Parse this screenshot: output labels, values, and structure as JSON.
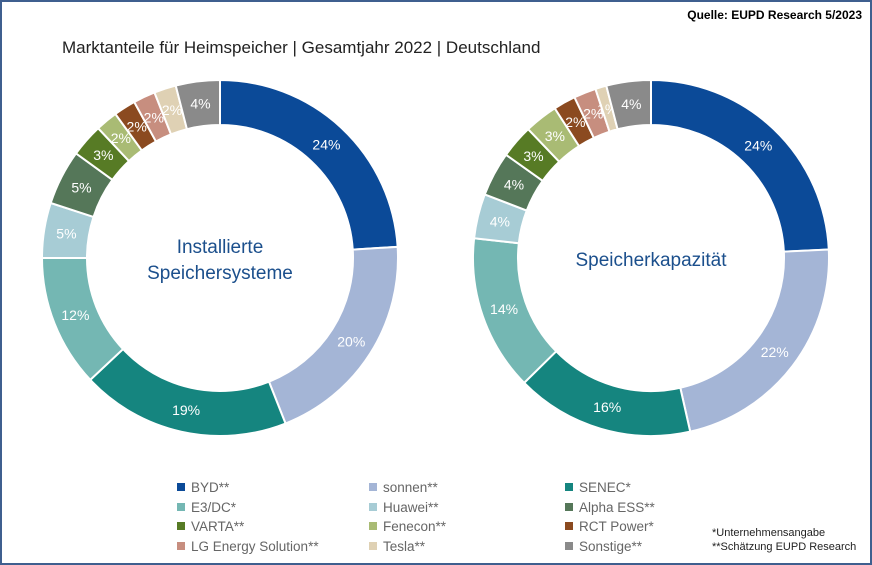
{
  "source": "Quelle: EUPD Research 5/2023",
  "title": "Marktanteile für Heimspeicher | Gesamtjahr 2022 | Deutschland",
  "colors": {
    "BYD": "#0b4a98",
    "sonnen": "#a4b5d6",
    "SENEC": "#15857f",
    "E3DC": "#74b7b3",
    "Huawei": "#a7ccd5",
    "AlphaESS": "#557759",
    "VARTA": "#577b25",
    "Fenecon": "#a9bb74",
    "RCTPower": "#8b4a20",
    "LGEnergy": "#c78e7f",
    "Tesla": "#dfd1b4",
    "Sonstige": "#8a8a8a"
  },
  "legend": [
    {
      "label": "BYD**",
      "color": "#0b4a98"
    },
    {
      "label": "sonnen**",
      "color": "#a4b5d6"
    },
    {
      "label": "SENEC*",
      "color": "#15857f"
    },
    {
      "label": "E3/DC*",
      "color": "#74b7b3"
    },
    {
      "label": "Huawei**",
      "color": "#a7ccd5"
    },
    {
      "label": "Alpha ESS**",
      "color": "#557759"
    },
    {
      "label": "VARTA**",
      "color": "#577b25"
    },
    {
      "label": "Fenecon**",
      "color": "#a9bb74"
    },
    {
      "label": "RCT Power*",
      "color": "#8b4a20"
    },
    {
      "label": "LG Energy Solution**",
      "color": "#c78e7f"
    },
    {
      "label": "Tesla**",
      "color": "#dfd1b4"
    },
    {
      "label": "Sonstige**",
      "color": "#8a8a8a"
    }
  ],
  "notes": [
    "*Unternehmensangabe",
    "**Schätzung EUPD Research"
  ],
  "chart_data": [
    {
      "type": "pie",
      "title": "Installierte Speichersysteme",
      "categories": [
        "BYD",
        "sonnen",
        "SENEC",
        "E3/DC",
        "Huawei",
        "Alpha ESS",
        "VARTA",
        "Fenecon",
        "RCT Power",
        "LG Energy Solution",
        "Tesla",
        "Sonstige"
      ],
      "values": [
        24,
        20,
        19,
        12,
        5,
        5,
        3,
        2,
        2,
        2,
        2,
        4
      ],
      "labels": [
        "24%",
        "20%",
        "19%",
        "12%",
        "5%",
        "5%",
        "3%",
        "2%",
        "2%",
        "2%",
        "2%",
        "4%"
      ],
      "title_lines": [
        "Installierte",
        "Speichersysteme"
      ]
    },
    {
      "type": "pie",
      "title": "Speicherkapazität",
      "categories": [
        "BYD",
        "sonnen",
        "SENEC",
        "E3/DC",
        "Huawei",
        "Alpha ESS",
        "VARTA",
        "Fenecon",
        "RCT Power",
        "LG Energy Solution",
        "Tesla",
        "Sonstige"
      ],
      "values": [
        24,
        22,
        16,
        14,
        4,
        4,
        3,
        3,
        2,
        2,
        1,
        4
      ],
      "labels": [
        "24%",
        "22%",
        "16%",
        "14%",
        "4%",
        "4%",
        "3%",
        "3%",
        "2%",
        "2%",
        "1%",
        "4%"
      ],
      "title_lines": [
        "Speicherkapazität"
      ]
    }
  ]
}
